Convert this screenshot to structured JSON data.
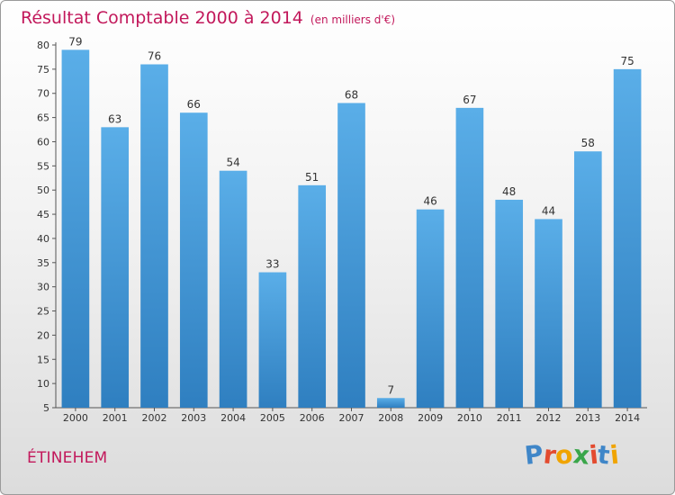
{
  "chart_data": {
    "type": "bar",
    "title": "Résultat Comptable 2000 à 2014",
    "subtitle": "(en milliers d'€)",
    "categories": [
      "2000",
      "2001",
      "2002",
      "2003",
      "2004",
      "2005",
      "2006",
      "2007",
      "2008",
      "2009",
      "2010",
      "2011",
      "2012",
      "2013",
      "2014"
    ],
    "values": [
      79,
      63,
      76,
      66,
      54,
      33,
      51,
      68,
      7,
      46,
      67,
      48,
      44,
      58,
      75
    ],
    "ylim": [
      5,
      80
    ],
    "yticks": [
      5,
      10,
      15,
      20,
      25,
      30,
      35,
      40,
      45,
      50,
      55,
      60,
      65,
      70,
      75,
      80
    ],
    "grid": false,
    "bar_color": "#4a98d6"
  },
  "commune": "ÉTINEHEM",
  "logo": {
    "letters": [
      {
        "ch": "P",
        "color": "#3f86c8"
      },
      {
        "ch": "r",
        "color": "#e34b2f"
      },
      {
        "ch": "o",
        "color": "#f0a400"
      },
      {
        "ch": "x",
        "color": "#3aa64a"
      },
      {
        "ch": "i",
        "color": "#e34b2f"
      },
      {
        "ch": "t",
        "color": "#3f86c8"
      },
      {
        "ch": "i",
        "color": "#f0a400"
      }
    ]
  }
}
